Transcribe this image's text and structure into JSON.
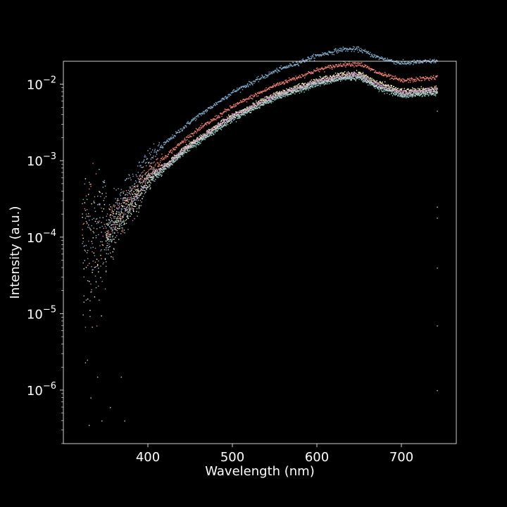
{
  "chart_data": {
    "type": "scatter",
    "title": "",
    "xlabel": "Wavelength (nm)",
    "ylabel": "Intensity (a.u.)",
    "xlim": [
      300,
      765
    ],
    "ylim_log10": [
      -6.7,
      -1.7
    ],
    "yscale": "log",
    "grid": false,
    "legend": "none",
    "background": "#000000",
    "axis_color": "#ffffff",
    "x_ticks": [
      {
        "value": 400,
        "label": "400"
      },
      {
        "value": 500,
        "label": "500"
      },
      {
        "value": 600,
        "label": "600"
      },
      {
        "value": 700,
        "label": "700"
      }
    ],
    "y_ticks": [
      {
        "value": 1e-06,
        "base": "10",
        "exp": "−6"
      },
      {
        "value": 1e-05,
        "base": "10",
        "exp": "−5"
      },
      {
        "value": 0.0001,
        "base": "10",
        "exp": "−4"
      },
      {
        "value": 0.001,
        "base": "10",
        "exp": "−3"
      },
      {
        "value": 0.01,
        "base": "10",
        "exp": "−2"
      }
    ],
    "x_range_data": [
      322,
      742
    ],
    "series": [
      {
        "color": "#81b1d2",
        "profile": [
          [
            350,
            0.00015
          ],
          [
            400,
            0.0011
          ],
          [
            450,
            0.0033
          ],
          [
            500,
            0.008
          ],
          [
            550,
            0.015
          ],
          [
            600,
            0.024
          ],
          [
            630,
            0.029
          ],
          [
            650,
            0.029
          ],
          [
            670,
            0.023
          ],
          [
            700,
            0.019
          ],
          [
            742,
            0.0205
          ]
        ]
      },
      {
        "color": "#fa8174",
        "profile": [
          [
            350,
            0.00012
          ],
          [
            400,
            0.00075
          ],
          [
            450,
            0.0022
          ],
          [
            500,
            0.0052
          ],
          [
            550,
            0.0098
          ],
          [
            600,
            0.0155
          ],
          [
            630,
            0.0185
          ],
          [
            650,
            0.0188
          ],
          [
            670,
            0.0145
          ],
          [
            700,
            0.0112
          ],
          [
            742,
            0.0125
          ]
        ]
      },
      {
        "color": "#feffb3",
        "profile": [
          [
            350,
            0.0001
          ],
          [
            400,
            0.00058
          ],
          [
            450,
            0.0017
          ],
          [
            500,
            0.004
          ],
          [
            550,
            0.0075
          ],
          [
            600,
            0.0115
          ],
          [
            630,
            0.0138
          ],
          [
            650,
            0.0142
          ],
          [
            670,
            0.0108
          ],
          [
            700,
            0.0083
          ],
          [
            742,
            0.0088
          ]
        ]
      },
      {
        "color": "#bc82bd",
        "profile": [
          [
            350,
            0.0001
          ],
          [
            400,
            0.00057
          ],
          [
            450,
            0.00165
          ],
          [
            500,
            0.0039
          ],
          [
            550,
            0.0073
          ],
          [
            600,
            0.011
          ],
          [
            630,
            0.013
          ],
          [
            650,
            0.0135
          ],
          [
            670,
            0.0102
          ],
          [
            700,
            0.0079
          ],
          [
            742,
            0.0087
          ]
        ]
      },
      {
        "color": "#8dd3c7",
        "profile": [
          [
            350,
            9e-05
          ],
          [
            400,
            0.00052
          ],
          [
            450,
            0.0015
          ],
          [
            500,
            0.0035
          ],
          [
            550,
            0.0066
          ],
          [
            600,
            0.01
          ],
          [
            630,
            0.0119
          ],
          [
            650,
            0.0123
          ],
          [
            670,
            0.0092
          ],
          [
            700,
            0.0071
          ],
          [
            742,
            0.0077
          ]
        ]
      },
      {
        "color": "#cccccc",
        "profile": [
          [
            350,
            0.0001
          ],
          [
            400,
            0.00055
          ],
          [
            450,
            0.0016
          ],
          [
            500,
            0.0037
          ],
          [
            550,
            0.0069
          ],
          [
            600,
            0.0105
          ],
          [
            630,
            0.0125
          ],
          [
            650,
            0.0128
          ],
          [
            670,
            0.0097
          ],
          [
            700,
            0.0075
          ],
          [
            742,
            0.0082
          ]
        ]
      }
    ]
  }
}
